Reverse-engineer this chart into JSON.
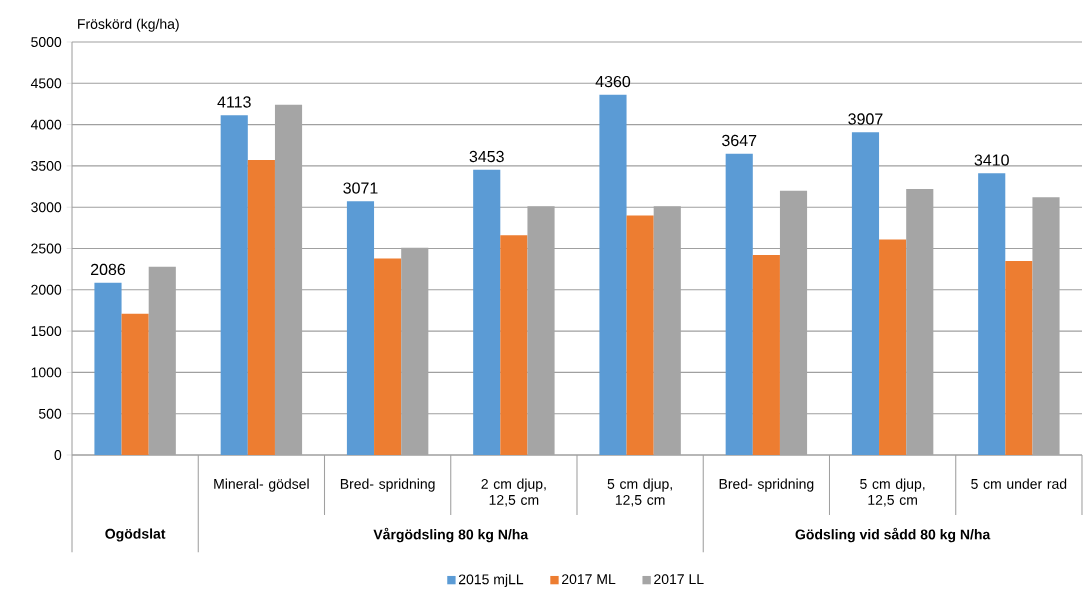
{
  "chart_data": {
    "type": "bar",
    "ylabel": "Fröskörd (kg/ha)",
    "categories": [
      null,
      "Mineral- gödsel",
      "Bred- spridning",
      "2 cm djup, 12,5 cm",
      "5 cm djup, 12,5 cm",
      "Bred- spridning",
      "5 cm djup, 12,5 cm",
      "5 cm under rad"
    ],
    "series": [
      {
        "name": "2015 mjLL",
        "color": "#5b9bd5",
        "values": [
          2086,
          4113,
          3071,
          3453,
          4360,
          3647,
          3907,
          3410
        ],
        "value_labels": [
          "2086",
          "4113",
          "3071",
          "3453",
          "4360",
          "3647",
          "3907",
          "3410"
        ]
      },
      {
        "name": "2017 ML",
        "color": "#ed7d31",
        "values": [
          1710,
          3570,
          2380,
          2660,
          2900,
          2420,
          2610,
          2350
        ]
      },
      {
        "name": "2017 LL",
        "color": "#a5a5a5",
        "values": [
          2280,
          4240,
          2510,
          3010,
          3010,
          3200,
          3220,
          3120
        ]
      }
    ],
    "ylim": [
      0,
      5000
    ],
    "yticks": [
      0,
      500,
      1000,
      1500,
      2000,
      2500,
      3000,
      3500,
      4000,
      4500,
      5000
    ],
    "grid": "y",
    "legend": "bottom",
    "annotations": [
      "Ogödslat",
      "Vårgödsling 80 kg N/ha",
      "Gödsling vid sådd 80 kg N/ha"
    ]
  }
}
